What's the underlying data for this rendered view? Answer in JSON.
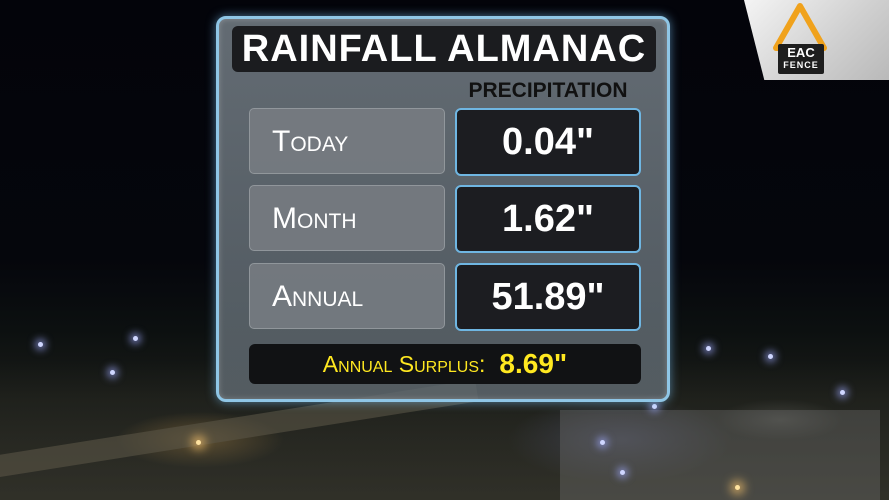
{
  "logo": {
    "line1": "EAC",
    "line2": "FENCE",
    "accent_color": "#f0a21c"
  },
  "almanac": {
    "title": "RAINFALL ALMANAC",
    "column_header": "PRECIPITATION",
    "rows": [
      {
        "label": "Today",
        "value": "0.04\""
      },
      {
        "label": "Month",
        "value": "1.62\""
      },
      {
        "label": "Annual",
        "value": "51.89\""
      }
    ],
    "surplus": {
      "label": "Annual Surplus:",
      "value": "8.69\""
    },
    "colors": {
      "border": "#8fc6e6",
      "surplus_text": "#ffe820"
    }
  }
}
